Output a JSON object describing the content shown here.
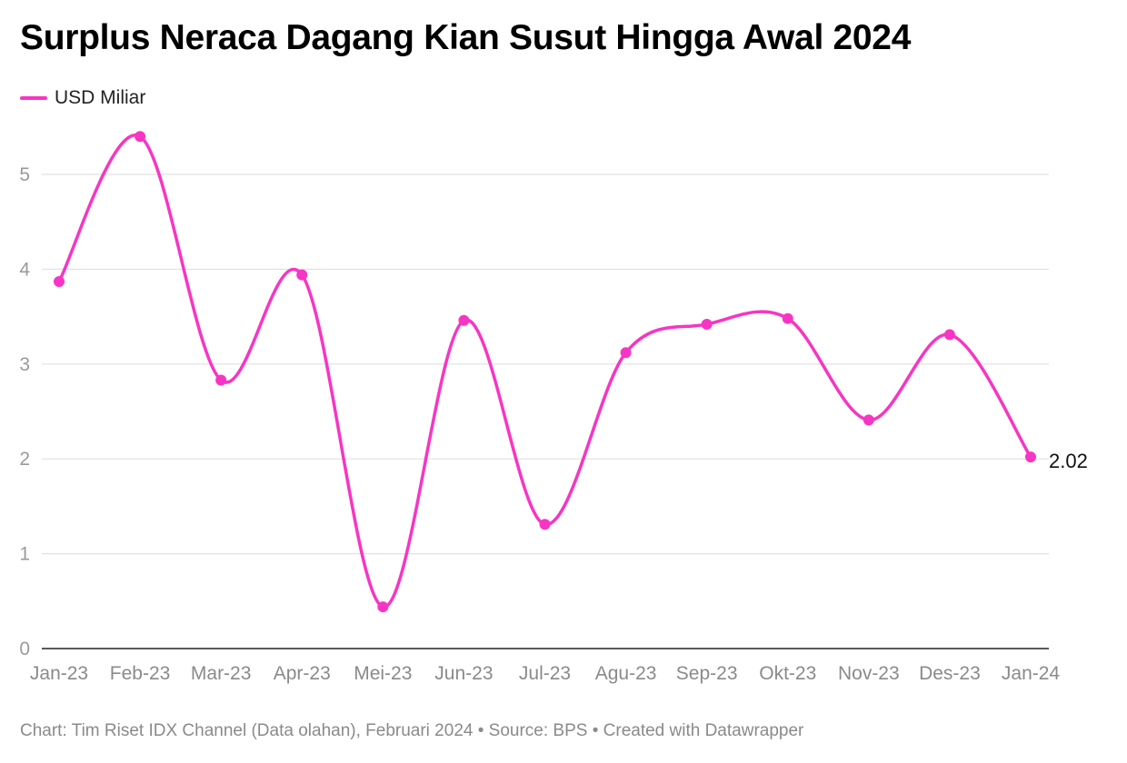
{
  "chart_data": {
    "type": "line",
    "title": "Surplus Neraca Dagang Kian Susut Hingga Awal 2024",
    "xlabel": "",
    "ylabel": "",
    "categories": [
      "Jan-23",
      "Feb-23",
      "Mar-23",
      "Apr-23",
      "Mei-23",
      "Jun-23",
      "Jul-23",
      "Agu-23",
      "Sep-23",
      "Okt-23",
      "Nov-23",
      "Des-23",
      "Jan-24"
    ],
    "series": [
      {
        "name": "USD Miliar",
        "color": "#f735c4",
        "values": [
          3.87,
          5.4,
          2.83,
          3.94,
          0.44,
          3.46,
          1.31,
          3.12,
          3.42,
          3.48,
          2.41,
          3.31,
          2.02
        ]
      }
    ],
    "ylim": [
      0,
      5.6
    ],
    "yticks": [
      0,
      1,
      2,
      3,
      4,
      5
    ],
    "grid": true,
    "legend_position": "top-left",
    "end_label": "2.02",
    "curve": "smooth"
  },
  "footer": "Chart: Tim Riset IDX Channel (Data olahan), Februari 2024 • Source: BPS • Created with Datawrapper"
}
